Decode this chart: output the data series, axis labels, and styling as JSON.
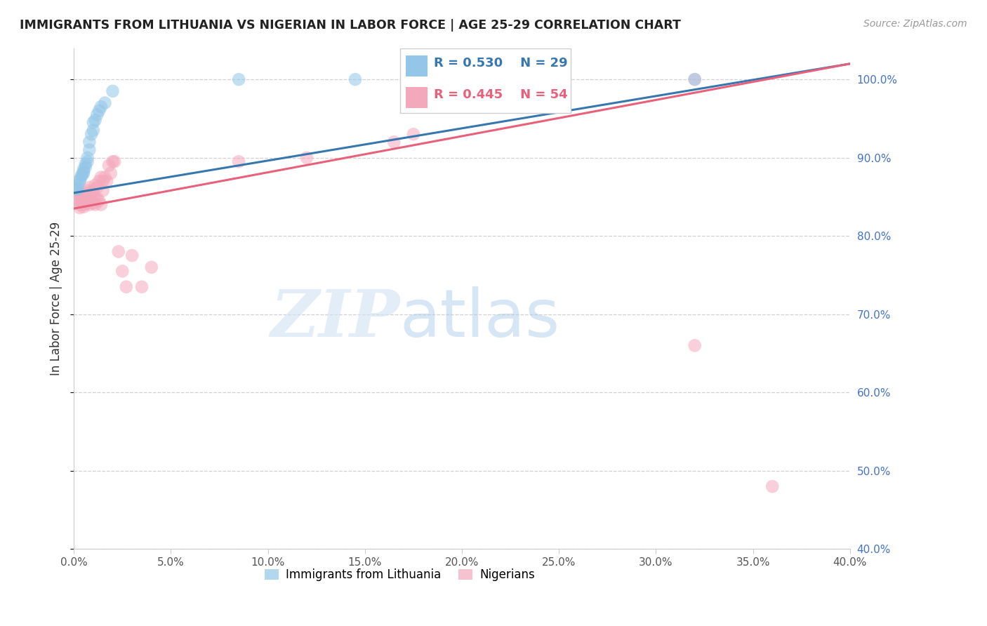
{
  "title": "IMMIGRANTS FROM LITHUANIA VS NIGERIAN IN LABOR FORCE | AGE 25-29 CORRELATION CHART",
  "source": "Source: ZipAtlas.com",
  "ylabel": "In Labor Force | Age 25-29",
  "legend_blue_r": "R = 0.530",
  "legend_blue_n": "N = 29",
  "legend_pink_r": "R = 0.445",
  "legend_pink_n": "N = 54",
  "legend_label_blue": "Immigrants from Lithuania",
  "legend_label_pink": "Nigerians",
  "xlim": [
    0.0,
    0.4
  ],
  "ylim": [
    0.4,
    1.04
  ],
  "xticks": [
    0.0,
    0.05,
    0.1,
    0.15,
    0.2,
    0.25,
    0.3,
    0.35,
    0.4
  ],
  "yticks": [
    0.4,
    0.5,
    0.6,
    0.7,
    0.8,
    0.9,
    1.0
  ],
  "ytick_labels": [
    "40.0%",
    "50.0%",
    "60.0%",
    "70.0%",
    "80.0%",
    "90.0%",
    "100.0%"
  ],
  "xtick_labels": [
    "0.0%",
    "5.0%",
    "10.0%",
    "15.0%",
    "20.0%",
    "25.0%",
    "30.0%",
    "35.0%",
    "40.0%"
  ],
  "blue_color": "#93c6e8",
  "pink_color": "#f4a8bc",
  "blue_line_color": "#3777b0",
  "pink_line_color": "#e8607a",
  "watermark_zip": "ZIP",
  "watermark_atlas": "atlas",
  "blue_scatter_x": [
    0.001,
    0.001,
    0.002,
    0.002,
    0.003,
    0.003,
    0.004,
    0.004,
    0.005,
    0.005,
    0.005,
    0.006,
    0.006,
    0.007,
    0.007,
    0.008,
    0.008,
    0.009,
    0.01,
    0.01,
    0.011,
    0.012,
    0.013,
    0.014,
    0.016,
    0.02,
    0.085,
    0.145,
    0.32
  ],
  "blue_scatter_y": [
    0.86,
    0.862,
    0.86,
    0.865,
    0.87,
    0.872,
    0.876,
    0.878,
    0.88,
    0.882,
    0.885,
    0.888,
    0.892,
    0.895,
    0.9,
    0.91,
    0.92,
    0.93,
    0.935,
    0.945,
    0.948,
    0.955,
    0.96,
    0.965,
    0.97,
    0.985,
    1.0,
    1.0,
    1.0
  ],
  "pink_scatter_x": [
    0.001,
    0.001,
    0.002,
    0.002,
    0.003,
    0.003,
    0.004,
    0.004,
    0.004,
    0.005,
    0.005,
    0.005,
    0.006,
    0.006,
    0.006,
    0.007,
    0.007,
    0.008,
    0.008,
    0.008,
    0.009,
    0.009,
    0.01,
    0.01,
    0.011,
    0.011,
    0.011,
    0.012,
    0.012,
    0.013,
    0.013,
    0.014,
    0.014,
    0.015,
    0.015,
    0.016,
    0.017,
    0.018,
    0.019,
    0.02,
    0.021,
    0.023,
    0.025,
    0.027,
    0.03,
    0.035,
    0.04,
    0.085,
    0.12,
    0.165,
    0.175,
    0.32,
    0.32,
    0.36
  ],
  "pink_scatter_y": [
    0.86,
    0.858,
    0.848,
    0.845,
    0.84,
    0.836,
    0.845,
    0.848,
    0.85,
    0.852,
    0.84,
    0.837,
    0.855,
    0.848,
    0.844,
    0.858,
    0.842,
    0.862,
    0.845,
    0.84,
    0.855,
    0.848,
    0.858,
    0.842,
    0.865,
    0.848,
    0.84,
    0.862,
    0.848,
    0.87,
    0.845,
    0.875,
    0.84,
    0.858,
    0.87,
    0.875,
    0.87,
    0.89,
    0.88,
    0.895,
    0.895,
    0.78,
    0.755,
    0.735,
    0.775,
    0.735,
    0.76,
    0.895,
    0.9,
    0.92,
    0.93,
    1.0,
    0.66,
    0.48
  ],
  "blue_trend_x0": 0.0,
  "blue_trend_y0": 0.855,
  "blue_trend_x1": 0.4,
  "blue_trend_y1": 1.02,
  "pink_trend_x0": 0.0,
  "pink_trend_y0": 0.835,
  "pink_trend_x1": 0.4,
  "pink_trend_y1": 1.02
}
